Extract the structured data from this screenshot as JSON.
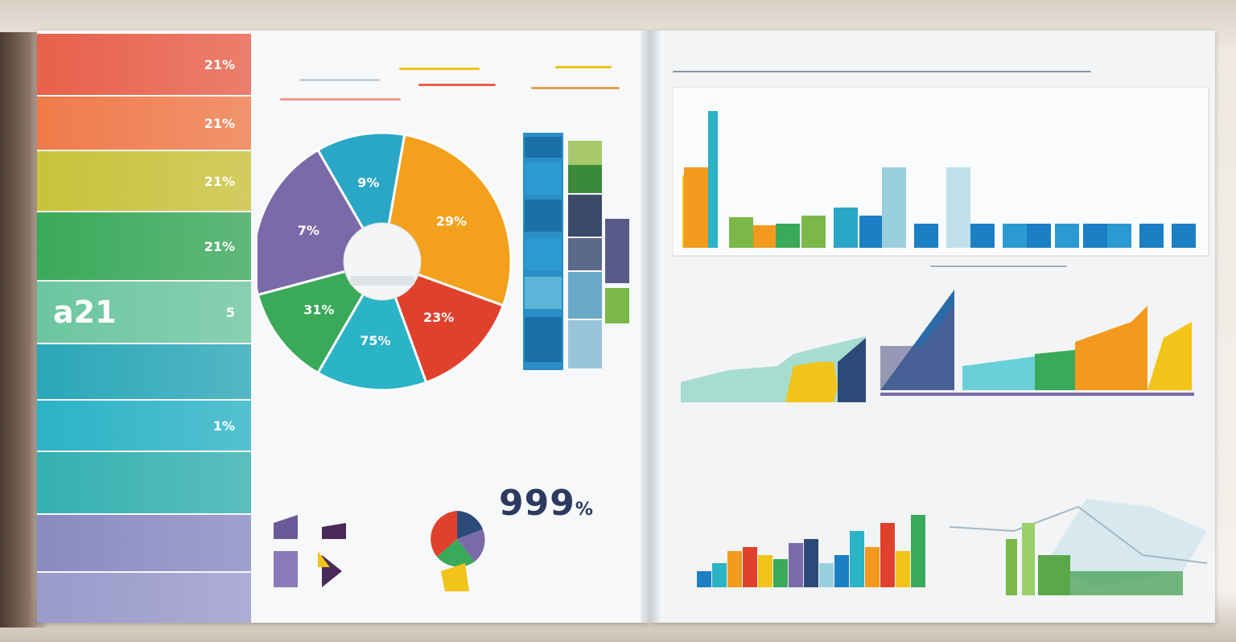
{
  "sidebar": {
    "stripes": [
      {
        "label": "",
        "value": "21%",
        "color": "#e8604a"
      },
      {
        "label": "",
        "value": "21%",
        "color": "#f07a4a"
      },
      {
        "label": "",
        "value": "21%",
        "color": "#c9c23a"
      },
      {
        "label": "",
        "value": "21%",
        "color": "#3aa95a"
      },
      {
        "label": "a21",
        "value": "5",
        "color": "#6cc6a0"
      },
      {
        "label": "",
        "value": "",
        "color": "#2aa7b8"
      },
      {
        "label": "",
        "value": "1%",
        "color": "#2bb3c6"
      },
      {
        "label": "",
        "value": "",
        "color": "#34b0b0"
      },
      {
        "label": "",
        "value": "",
        "color": "#8a8ac2"
      },
      {
        "label": "",
        "value": "",
        "color": "#9a9acb"
      }
    ]
  },
  "pie": {
    "labels": [
      "29%",
      "23%",
      "75%",
      "31%",
      "7%",
      "9%"
    ]
  },
  "kpi": {
    "value": "999",
    "unit": "%"
  },
  "colors": {
    "blue": "#1c7fc4",
    "teal": "#2bb3c6",
    "orange": "#f39a1e",
    "yellow": "#f2c318",
    "green": "#3aa95a",
    "red": "#e0412d",
    "purple": "#7a6aa8",
    "navy": "#2c4a78"
  }
}
